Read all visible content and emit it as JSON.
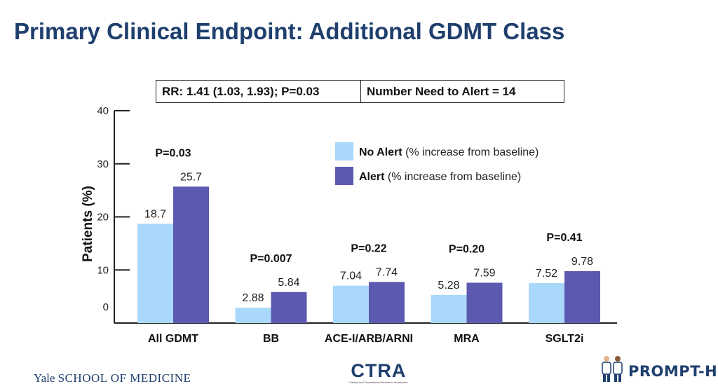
{
  "slide": {
    "title": "Primary Clinical Endpoint: Additional GDMT Class",
    "stats_left": "RR: 1.41 (1.03, 1.93); P=0.03",
    "stats_right": "Number Need to Alert = 14"
  },
  "footer": {
    "yale_brand": "Yale",
    "yale_school": "SCHOOL OF MEDICINE",
    "ctra_logo": "CTRA",
    "ctra_subtitle": "Clinical and Translational Research Accelerator",
    "prompt_logo": "PROMPT-HF"
  },
  "colors": {
    "title": "#1f3f6e",
    "no_alert": "#a9d8fb",
    "alert": "#5b5ab0"
  },
  "chart_data": {
    "type": "bar",
    "categories": [
      "All GDMT",
      "BB",
      "ACE-I/ARB/ARNI",
      "MRA",
      "SGLT2i"
    ],
    "series": [
      {
        "name": "No Alert",
        "legend_note": "(% increase from baseline)",
        "color": "#a9d8fb",
        "values": [
          18.7,
          2.88,
          7.04,
          5.28,
          7.52
        ],
        "labels": [
          "18.7",
          "2.88",
          "7.04",
          "5.28",
          "7.52"
        ]
      },
      {
        "name": "Alert",
        "legend_note": "(% increase from baseline)",
        "color": "#5b5ab0",
        "values": [
          25.7,
          5.84,
          7.74,
          7.59,
          9.78
        ],
        "labels": [
          "25.7",
          "5.84",
          "7.74",
          "7.59",
          "9.78"
        ]
      }
    ],
    "p_values": [
      "P=0.03",
      "P=0.007",
      "P=0.22",
      "P=0.20",
      "P=0.41"
    ],
    "ylabel": "Patients (%)",
    "xlabel": "",
    "ylim": [
      0,
      40
    ],
    "yticks": [
      0,
      10,
      20,
      30,
      40
    ],
    "legend_position": "top-right",
    "grid": false
  }
}
